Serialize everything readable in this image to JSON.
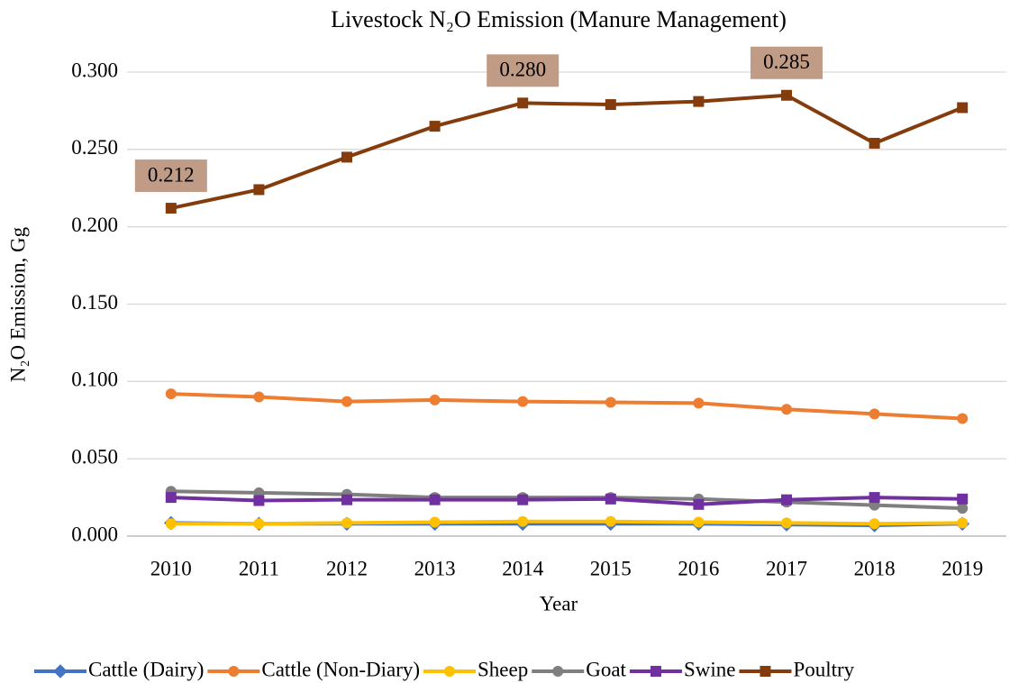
{
  "chart_data": {
    "type": "line",
    "title": "Livestock N₂O Emission (Manure Management)",
    "x_label": "Year",
    "y_label": "N₂O Emission, Gg",
    "categories": [
      "2010",
      "2011",
      "2012",
      "2013",
      "2014",
      "2015",
      "2016",
      "2017",
      "2018",
      "2019"
    ],
    "series": [
      {
        "name": "Cattle (Dairy)",
        "color": "#4472c4",
        "marker": "diamond",
        "values": [
          0.0085,
          0.008,
          0.008,
          0.008,
          0.008,
          0.008,
          0.008,
          0.0075,
          0.007,
          0.008
        ]
      },
      {
        "name": "Cattle (Non-Diary)",
        "color": "#ed7d31",
        "marker": "circle",
        "values": [
          0.092,
          0.09,
          0.087,
          0.088,
          0.087,
          0.0865,
          0.086,
          0.082,
          0.079,
          0.076
        ]
      },
      {
        "name": "Sheep",
        "color": "#ffc000",
        "marker": "circle",
        "values": [
          0.008,
          0.008,
          0.0085,
          0.009,
          0.0095,
          0.0095,
          0.009,
          0.0085,
          0.008,
          0.0085
        ]
      },
      {
        "name": "Goat",
        "color": "#7f7f7f",
        "marker": "circle",
        "values": [
          0.029,
          0.028,
          0.027,
          0.025,
          0.025,
          0.025,
          0.024,
          0.022,
          0.02,
          0.018
        ]
      },
      {
        "name": "Swine",
        "color": "#7030a0",
        "marker": "square",
        "values": [
          0.025,
          0.023,
          0.0235,
          0.0235,
          0.0235,
          0.024,
          0.0205,
          0.0235,
          0.025,
          0.024
        ]
      },
      {
        "name": "Poultry",
        "color": "#843c0c",
        "marker": "square",
        "values": [
          0.212,
          0.224,
          0.245,
          0.265,
          0.28,
          0.279,
          0.281,
          0.285,
          0.254,
          0.277
        ],
        "value_labels": [
          "0.212",
          null,
          null,
          null,
          "0.280",
          null,
          null,
          "0.285",
          null,
          null
        ]
      }
    ],
    "ylim": [
      0,
      0.3
    ],
    "yticks": [
      {
        "value": 0,
        "label": "0.000"
      },
      {
        "value": 0.05,
        "label": "0.050"
      },
      {
        "value": 0.1,
        "label": "0.100"
      },
      {
        "value": 0.15,
        "label": "0.150"
      },
      {
        "value": 0.2,
        "label": "0.200"
      },
      {
        "value": 0.25,
        "label": "0.250"
      },
      {
        "value": 0.3,
        "label": "0.300"
      }
    ],
    "grid": true,
    "legend": "bottom",
    "value_label_color": "#c09b86"
  }
}
